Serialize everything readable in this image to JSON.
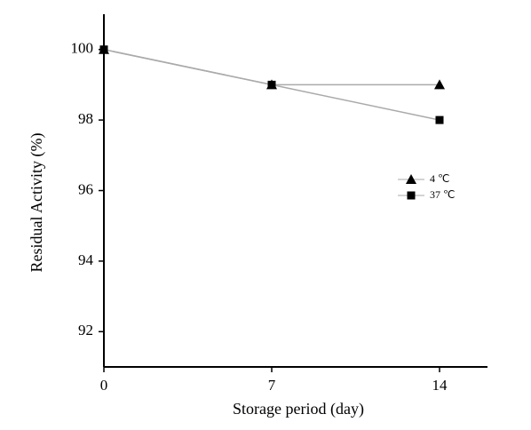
{
  "chart_data": {
    "type": "line",
    "x_label": "Storage period (day)",
    "y_label": "Residual Activity (%)",
    "x": [
      0,
      7,
      14
    ],
    "xlim": [
      0,
      16
    ],
    "xticks": [
      0,
      7,
      14
    ],
    "ylim": [
      91,
      101
    ],
    "yticks": [
      92,
      94,
      96,
      98,
      100
    ],
    "legend": "right",
    "series": [
      {
        "name": "4 ℃",
        "color": "#000000",
        "marker": "triangle",
        "values": [
          100,
          99,
          99
        ]
      },
      {
        "name": "37 ℃",
        "color": "#000000",
        "marker": "square",
        "values": [
          100,
          99,
          98
        ]
      }
    ]
  }
}
